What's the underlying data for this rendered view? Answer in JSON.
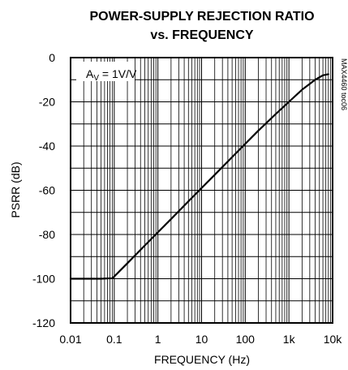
{
  "chart_data": {
    "type": "line",
    "title_line1": "POWER-SUPPLY REJECTION RATIO",
    "title_line2": "vs. FREQUENCY",
    "xlabel": "FREQUENCY (Hz)",
    "ylabel": "PSRR (dB)",
    "x_scale": "log",
    "xlim": [
      0.01,
      10000
    ],
    "ylim": [
      -120,
      0
    ],
    "x_ticks": [
      {
        "value": 0.01,
        "label": "0.01"
      },
      {
        "value": 0.1,
        "label": "0.1"
      },
      {
        "value": 1,
        "label": "1"
      },
      {
        "value": 10,
        "label": "10"
      },
      {
        "value": 100,
        "label": "100"
      },
      {
        "value": 1000,
        "label": "1k"
      },
      {
        "value": 10000,
        "label": "10k"
      }
    ],
    "y_ticks": [
      {
        "value": 0,
        "label": "0"
      },
      {
        "value": -20,
        "label": "-20"
      },
      {
        "value": -40,
        "label": "-40"
      },
      {
        "value": -60,
        "label": "-60"
      },
      {
        "value": -80,
        "label": "-80"
      },
      {
        "value": -100,
        "label": "-100"
      },
      {
        "value": -120,
        "label": "-120"
      }
    ],
    "grid": true,
    "annotation": {
      "main": "A",
      "sub": "V",
      "rest": " = 1V/V"
    },
    "side_code": "MAX4460 toc06",
    "line_color": "#000000",
    "series": [
      {
        "x": [
          0.01,
          0.05,
          0.09,
          0.1,
          0.2,
          0.5,
          1,
          2,
          5,
          10,
          20,
          50,
          100,
          200,
          500,
          1000,
          2000,
          4000,
          6000,
          8000
        ],
        "y": [
          -100,
          -100,
          -99.8,
          -99,
          -93,
          -85,
          -79,
          -73,
          -65,
          -59,
          -53,
          -45,
          -39,
          -33,
          -25.5,
          -20,
          -14.5,
          -10,
          -8,
          -7.5
        ]
      }
    ]
  }
}
